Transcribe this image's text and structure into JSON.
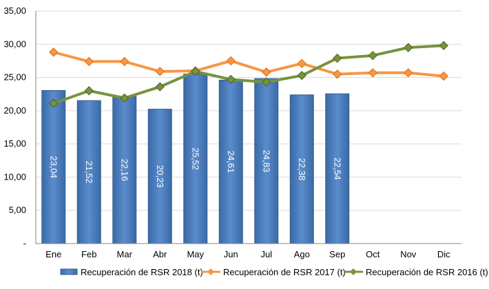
{
  "chart_data": {
    "type": "bar",
    "categories": [
      "Ene",
      "Feb",
      "Mar",
      "Abr",
      "May",
      "Jun",
      "Jul",
      "Ago",
      "Sep",
      "Oct",
      "Nov",
      "Dic"
    ],
    "series": [
      {
        "name": "Recuperación de RSR 2018 (t)",
        "type": "bar",
        "color": "#4F81BD",
        "values": [
          23.04,
          21.52,
          22.16,
          20.23,
          25.52,
          24.61,
          24.83,
          22.38,
          22.54,
          null,
          null,
          null
        ],
        "value_labels": [
          "23,04",
          "21,52",
          "22,16",
          "20,23",
          "25,52",
          "24,61",
          "24,83",
          "22,38",
          "22,54",
          "",
          "",
          ""
        ]
      },
      {
        "name": "Recuperación de RSR 2017 (t)",
        "type": "line",
        "color": "#F79646",
        "values": [
          28.8,
          27.4,
          27.4,
          25.9,
          26.0,
          27.5,
          25.8,
          27.1,
          25.5,
          25.7,
          25.7,
          25.2
        ]
      },
      {
        "name": "Recuperación de RSR 2016 (t)",
        "type": "line",
        "color": "#77933C",
        "values": [
          21.1,
          23.0,
          21.9,
          23.6,
          25.9,
          24.7,
          24.3,
          25.3,
          27.9,
          28.3,
          29.5,
          29.8
        ]
      }
    ],
    "y_ticks": [
      0,
      5,
      10,
      15,
      20,
      25,
      30,
      35
    ],
    "y_tick_labels": [
      "-",
      "5,00",
      "10,00",
      "15,00",
      "20,00",
      "25,00",
      "30,00",
      "35,00"
    ],
    "ylim": [
      0,
      35
    ],
    "grid": true,
    "legend_position": "bottom",
    "title": "",
    "xlabel": "",
    "ylabel": ""
  }
}
